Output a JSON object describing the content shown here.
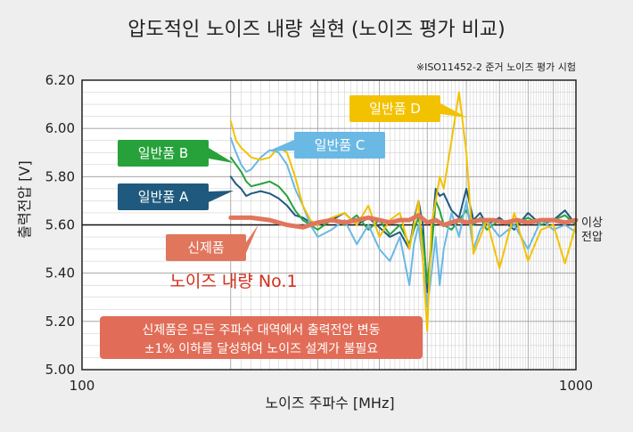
{
  "title": "압도적인 노이즈 내량 실현 (노이즈 평가 비교)",
  "note": "※ISO11452-2 준거 노이즈 평가 시험",
  "brand_claim": "노이즈 내량 No.1",
  "banner": {
    "line1": "신제품은 모든 주파수 대역에서 출력전압 변동",
    "line2": "±1% 이하를 달성하여 노이즈 설계가 불필요"
  },
  "side_labels": {
    "upper": "이상",
    "lower": "전압"
  },
  "colors": {
    "new_product": "#e0765c",
    "general_A": "#1f5a7e",
    "general_B": "#27a23a",
    "general_C": "#6ab8e4",
    "general_D": "#f2c200",
    "brand": "#d32f1c",
    "banner": "#e16d58"
  },
  "chart_data": {
    "type": "line",
    "xlabel": "노이즈 주파수 [MHz]",
    "ylabel": "출력전압 [V]",
    "xscale": "log",
    "xlim": [
      100,
      1000
    ],
    "ylim": [
      5.0,
      6.2
    ],
    "xticks": [
      "100",
      "1000"
    ],
    "yticks": [
      "5.00",
      "5.20",
      "5.40",
      "5.60",
      "5.80",
      "6.00",
      "6.20"
    ],
    "reference_line": 5.6,
    "grid": true,
    "series": [
      {
        "name": "일반품 A",
        "color": "#1f5a7e",
        "x": [
          200,
          205,
          210,
          215,
          220,
          230,
          240,
          250,
          260,
          270,
          280,
          290,
          300,
          320,
          340,
          360,
          380,
          400,
          420,
          440,
          460,
          470,
          480,
          490,
          500,
          510,
          520,
          530,
          540,
          560,
          580,
          600,
          620,
          640,
          660,
          700,
          750,
          800,
          850,
          900,
          950,
          1000
        ],
        "y": [
          5.8,
          5.77,
          5.75,
          5.72,
          5.73,
          5.74,
          5.73,
          5.71,
          5.68,
          5.64,
          5.63,
          5.61,
          5.6,
          5.62,
          5.65,
          5.6,
          5.63,
          5.59,
          5.55,
          5.57,
          5.5,
          5.62,
          5.7,
          5.6,
          5.32,
          5.55,
          5.75,
          5.72,
          5.73,
          5.66,
          5.63,
          5.75,
          5.62,
          5.65,
          5.6,
          5.63,
          5.58,
          5.65,
          5.6,
          5.62,
          5.66,
          5.6
        ]
      },
      {
        "name": "일반품 B",
        "color": "#27a23a",
        "x": [
          200,
          205,
          210,
          215,
          220,
          230,
          240,
          250,
          260,
          270,
          280,
          290,
          300,
          320,
          340,
          360,
          380,
          400,
          420,
          440,
          460,
          470,
          480,
          490,
          500,
          510,
          520,
          530,
          540,
          560,
          580,
          600,
          620,
          640,
          660,
          700,
          750,
          800,
          850,
          900,
          950,
          1000
        ],
        "y": [
          5.88,
          5.85,
          5.82,
          5.78,
          5.76,
          5.77,
          5.78,
          5.76,
          5.72,
          5.66,
          5.62,
          5.6,
          5.58,
          5.62,
          5.6,
          5.64,
          5.58,
          5.62,
          5.56,
          5.6,
          5.52,
          5.58,
          5.63,
          5.55,
          5.36,
          5.5,
          5.7,
          5.66,
          5.6,
          5.58,
          5.62,
          5.66,
          5.6,
          5.63,
          5.58,
          5.62,
          5.6,
          5.63,
          5.6,
          5.62,
          5.64,
          5.6
        ]
      },
      {
        "name": "일반품 C",
        "color": "#6ab8e4",
        "x": [
          200,
          205,
          210,
          215,
          220,
          230,
          240,
          250,
          260,
          270,
          280,
          290,
          300,
          320,
          340,
          360,
          380,
          400,
          420,
          440,
          460,
          470,
          480,
          490,
          500,
          510,
          520,
          530,
          540,
          560,
          580,
          600,
          620,
          640,
          660,
          700,
          750,
          800,
          850,
          900,
          950,
          1000
        ],
        "y": [
          5.96,
          5.9,
          5.85,
          5.82,
          5.83,
          5.88,
          5.91,
          5.9,
          5.85,
          5.75,
          5.68,
          5.6,
          5.55,
          5.58,
          5.62,
          5.52,
          5.6,
          5.5,
          5.45,
          5.55,
          5.35,
          5.52,
          5.6,
          5.45,
          5.26,
          5.4,
          5.55,
          5.35,
          5.5,
          5.65,
          5.55,
          5.7,
          5.5,
          5.58,
          5.62,
          5.55,
          5.6,
          5.5,
          5.62,
          5.58,
          5.6,
          5.57
        ]
      },
      {
        "name": "일반품 D",
        "color": "#f2c200",
        "x": [
          200,
          205,
          210,
          215,
          220,
          230,
          240,
          250,
          260,
          270,
          280,
          290,
          300,
          320,
          340,
          360,
          380,
          400,
          420,
          440,
          460,
          470,
          480,
          490,
          500,
          510,
          520,
          530,
          540,
          560,
          580,
          600,
          620,
          640,
          660,
          700,
          750,
          800,
          850,
          900,
          950,
          1000
        ],
        "y": [
          6.03,
          5.95,
          5.92,
          5.9,
          5.88,
          5.87,
          5.88,
          5.92,
          5.9,
          5.8,
          5.68,
          5.62,
          5.6,
          5.63,
          5.65,
          5.6,
          5.68,
          5.55,
          5.62,
          5.65,
          5.5,
          5.6,
          5.7,
          5.45,
          5.16,
          5.6,
          5.7,
          5.8,
          5.75,
          5.95,
          6.15,
          5.9,
          5.48,
          5.55,
          5.62,
          5.42,
          5.65,
          5.45,
          5.58,
          5.6,
          5.44,
          5.6
        ]
      },
      {
        "name": "신제품",
        "color": "#e0765c",
        "x": [
          200,
          220,
          240,
          260,
          280,
          300,
          320,
          340,
          360,
          380,
          400,
          420,
          440,
          460,
          480,
          500,
          520,
          540,
          560,
          580,
          600,
          640,
          680,
          720,
          760,
          800,
          850,
          900,
          950,
          1000
        ],
        "y": [
          5.63,
          5.63,
          5.62,
          5.6,
          5.59,
          5.61,
          5.62,
          5.61,
          5.62,
          5.63,
          5.62,
          5.61,
          5.62,
          5.62,
          5.64,
          5.61,
          5.62,
          5.6,
          5.61,
          5.62,
          5.61,
          5.62,
          5.62,
          5.61,
          5.62,
          5.61,
          5.62,
          5.62,
          5.61,
          5.62
        ]
      }
    ]
  }
}
